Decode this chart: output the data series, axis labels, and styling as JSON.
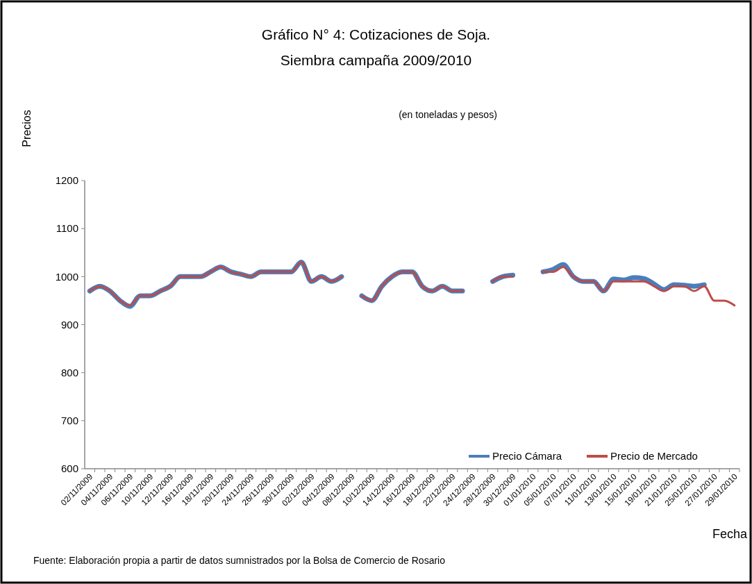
{
  "chart_data": {
    "type": "line",
    "title": "Gráfico N° 4: Cotizaciones de Soja.",
    "subtitle": "Siembra campaña 2009/2010",
    "xlabel": "Fecha",
    "ylabel": "Precios",
    "annotations": [
      "(en toneladas y pesos)",
      "Fuente: Elaboración propia a partir de datos sumnistrados por la Bolsa de Comercio de Rosario"
    ],
    "categories": [
      "02/11/2009",
      null,
      "04/11/2009",
      null,
      "06/11/2009",
      null,
      "10/11/2009",
      null,
      "12/11/2009",
      null,
      "16/11/2009",
      null,
      "18/11/2009",
      null,
      "20/11/2009",
      null,
      "24/11/2009",
      null,
      "26/11/2009",
      null,
      "30/11/2009",
      null,
      "02/12/2009",
      null,
      "04/12/2009",
      null,
      "08/12/2009",
      null,
      "10/12/2009",
      null,
      "14/12/2009",
      null,
      "16/12/2009",
      null,
      "18/12/2009",
      null,
      "22/12/2009",
      null,
      "24/12/2009",
      null,
      "28/12/2009",
      null,
      "30/12/2009",
      null,
      "01/01/2010",
      null,
      "05/01/2010",
      null,
      "07/01/2010",
      null,
      "11/01/2010",
      null,
      "13/01/2010",
      null,
      "15/01/2010",
      null,
      "19/01/2010",
      null,
      "21/01/2010",
      null,
      "25/01/2010",
      null,
      "27/01/2010",
      null,
      "29/01/2010"
    ],
    "series": [
      {
        "name": "Precio Cámara",
        "color": "#4a7ebb",
        "values": [
          970,
          980,
          970,
          950,
          938,
          960,
          960,
          970,
          980,
          1000,
          1000,
          1000,
          1010,
          1020,
          1010,
          1005,
          1000,
          1010,
          1010,
          1010,
          1010,
          1030,
          990,
          1000,
          990,
          1000,
          null,
          960,
          950,
          980,
          1000,
          1010,
          1010,
          980,
          970,
          980,
          970,
          970,
          null,
          null,
          990,
          1000,
          1003,
          null,
          null,
          1010,
          1015,
          1025,
          1000,
          990,
          990,
          970,
          995,
          993,
          998,
          996,
          985,
          973,
          983,
          982,
          980,
          983,
          null,
          null,
          null
        ]
      },
      {
        "name": "Precio de Mercado",
        "color": "#be4b48",
        "values": [
          970,
          980,
          970,
          950,
          940,
          960,
          960,
          970,
          980,
          1000,
          1000,
          1000,
          1010,
          1020,
          1010,
          1005,
          1000,
          1010,
          1010,
          1010,
          1010,
          1030,
          990,
          1000,
          990,
          1000,
          null,
          960,
          950,
          980,
          1000,
          1010,
          1010,
          980,
          970,
          980,
          970,
          970,
          null,
          null,
          990,
          1000,
          1000,
          null,
          null,
          1010,
          1010,
          1020,
          1000,
          990,
          990,
          970,
          990,
          990,
          990,
          990,
          980,
          970,
          980,
          980,
          970,
          980,
          950,
          950,
          940
        ]
      }
    ],
    "ylim": [
      600,
      1200
    ],
    "yticks": [
      600,
      700,
      800,
      900,
      1000,
      1100,
      1200
    ],
    "grid": false,
    "legend": "bottom right",
    "marker": "none",
    "line_style": "solid"
  }
}
